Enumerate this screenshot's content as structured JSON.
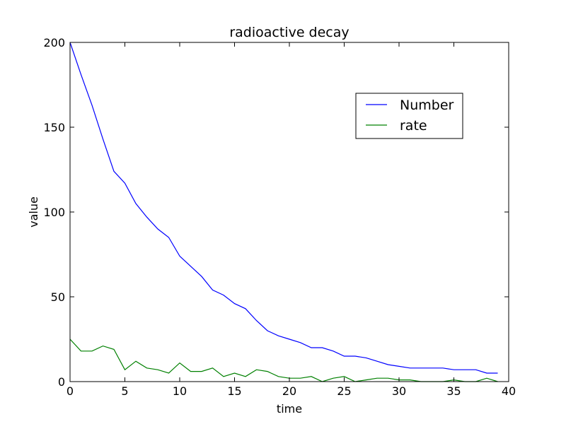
{
  "chart_data": {
    "type": "line",
    "title": "radioactive decay",
    "xlabel": "time",
    "ylabel": "value",
    "xlim": [
      0,
      40
    ],
    "ylim": [
      0,
      200
    ],
    "xticks": [
      0,
      5,
      10,
      15,
      20,
      25,
      30,
      35,
      40
    ],
    "yticks": [
      0,
      50,
      100,
      150,
      200
    ],
    "grid": false,
    "legend_position": "upper-right",
    "series": [
      {
        "name": "Number",
        "color": "#0000ff",
        "x": [
          0,
          1,
          2,
          3,
          4,
          5,
          6,
          7,
          8,
          9,
          10,
          11,
          12,
          13,
          14,
          15,
          16,
          17,
          18,
          19,
          20,
          21,
          22,
          23,
          24,
          25,
          26,
          27,
          28,
          29,
          30,
          31,
          32,
          33,
          34,
          35,
          36,
          37,
          38,
          39
        ],
        "values": [
          200,
          181,
          163,
          143,
          124,
          117,
          105,
          97,
          90,
          85,
          74,
          68,
          62,
          54,
          51,
          46,
          43,
          36,
          30,
          27,
          25,
          23,
          20,
          20,
          18,
          15,
          15,
          14,
          12,
          10,
          9,
          8,
          8,
          8,
          8,
          7,
          7,
          7,
          5,
          5
        ]
      },
      {
        "name": "rate",
        "color": "#008000",
        "x": [
          0,
          1,
          2,
          3,
          4,
          5,
          6,
          7,
          8,
          9,
          10,
          11,
          12,
          13,
          14,
          15,
          16,
          17,
          18,
          19,
          20,
          21,
          22,
          23,
          24,
          25,
          26,
          27,
          28,
          29,
          30,
          31,
          32,
          33,
          34,
          35,
          36,
          37,
          38,
          39
        ],
        "values": [
          25,
          18,
          18,
          21,
          19,
          7,
          12,
          8,
          7,
          5,
          11,
          6,
          6,
          8,
          3,
          5,
          3,
          7,
          6,
          3,
          2,
          2,
          3,
          0,
          2,
          3,
          0,
          1,
          2,
          2,
          1,
          1,
          0,
          0,
          0,
          1,
          0,
          0,
          2,
          0
        ]
      }
    ]
  }
}
